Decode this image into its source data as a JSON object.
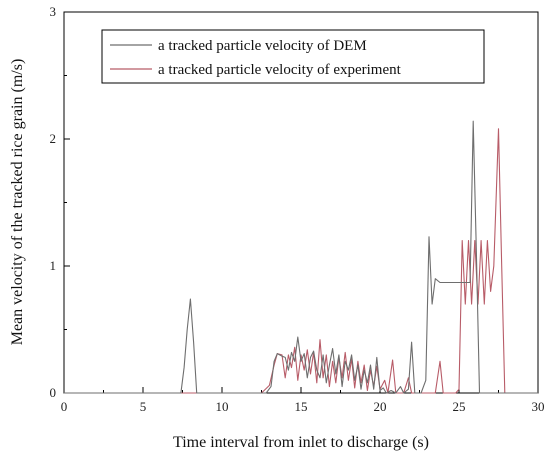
{
  "chart_data": {
    "type": "line",
    "xlabel": "Time interval from inlet to discharge (s)",
    "ylabel": "Mean velocity of the tracked rice grain (m/s)",
    "xlim": [
      0,
      30
    ],
    "ylim": [
      0,
      3
    ],
    "xticks": [
      "0",
      "5",
      "10",
      "15",
      "20",
      "25",
      "30"
    ],
    "yticks": [
      "0",
      "1",
      "2",
      "3"
    ],
    "grid": false,
    "legend_position": "top-center",
    "series": [
      {
        "name": "a tracked particle velocity of DEM",
        "color": "#6e6e6e",
        "points": [
          [
            0,
            0
          ],
          [
            7.4,
            0
          ],
          [
            7.6,
            0.2
          ],
          [
            7.8,
            0.5
          ],
          [
            8.0,
            0.74
          ],
          [
            8.2,
            0.4
          ],
          [
            8.4,
            0
          ],
          [
            12.8,
            0
          ],
          [
            13.1,
            0.05
          ],
          [
            13.3,
            0.25
          ],
          [
            13.5,
            0.31
          ],
          [
            13.8,
            0.29
          ],
          [
            14.0,
            0.28
          ],
          [
            14.2,
            0.18
          ],
          [
            14.4,
            0.32
          ],
          [
            14.6,
            0.25
          ],
          [
            14.8,
            0.44
          ],
          [
            15.0,
            0.25
          ],
          [
            15.2,
            0.31
          ],
          [
            15.4,
            0.12
          ],
          [
            15.6,
            0.28
          ],
          [
            15.8,
            0.33
          ],
          [
            16.0,
            0.18
          ],
          [
            16.2,
            0.12
          ],
          [
            16.4,
            0.3
          ],
          [
            16.6,
            0.08
          ],
          [
            16.8,
            0.22
          ],
          [
            17.0,
            0.35
          ],
          [
            17.2,
            0.15
          ],
          [
            17.4,
            0.3
          ],
          [
            17.6,
            0.05
          ],
          [
            17.8,
            0.25
          ],
          [
            18.0,
            0.18
          ],
          [
            18.2,
            0.3
          ],
          [
            18.4,
            0.1
          ],
          [
            18.6,
            0.22
          ],
          [
            18.8,
            0.03
          ],
          [
            19.0,
            0.18
          ],
          [
            19.2,
            0.08
          ],
          [
            19.4,
            0.22
          ],
          [
            19.6,
            0.03
          ],
          [
            19.8,
            0.28
          ],
          [
            20.0,
            0.02
          ],
          [
            20.2,
            0.04
          ],
          [
            20.4,
            0
          ],
          [
            20.7,
            0.02
          ],
          [
            21.0,
            0
          ],
          [
            21.3,
            0.05
          ],
          [
            21.5,
            0
          ],
          [
            21.8,
            0.03
          ],
          [
            22.0,
            0.4
          ],
          [
            22.2,
            0
          ],
          [
            22.6,
            0
          ],
          [
            22.9,
            0.1
          ],
          [
            23.1,
            1.23
          ],
          [
            23.3,
            0.7
          ],
          [
            23.5,
            0.9
          ],
          [
            23.8,
            0.87
          ],
          [
            25.7,
            0.87
          ],
          [
            25.9,
            2.14
          ],
          [
            26.1,
            1.1
          ],
          [
            26.3,
            0
          ],
          [
            30,
            0
          ]
        ]
      },
      {
        "name": "a tracked particle velocity of experiment",
        "color": "#b85c68",
        "points": [
          [
            0,
            0
          ],
          [
            12.5,
            0
          ],
          [
            13.0,
            0.06
          ],
          [
            13.3,
            0.22
          ],
          [
            13.5,
            0.31
          ],
          [
            13.8,
            0.3
          ],
          [
            14.0,
            0.12
          ],
          [
            14.2,
            0.3
          ],
          [
            14.4,
            0.2
          ],
          [
            14.6,
            0.36
          ],
          [
            14.8,
            0.1
          ],
          [
            15.0,
            0.3
          ],
          [
            15.2,
            0.18
          ],
          [
            15.4,
            0.34
          ],
          [
            15.6,
            0.15
          ],
          [
            15.8,
            0.32
          ],
          [
            16.0,
            0.08
          ],
          [
            16.2,
            0.42
          ],
          [
            16.4,
            0.12
          ],
          [
            16.6,
            0.3
          ],
          [
            16.8,
            0.05
          ],
          [
            17.0,
            0.25
          ],
          [
            17.2,
            0.08
          ],
          [
            17.4,
            0.28
          ],
          [
            17.6,
            0.12
          ],
          [
            17.8,
            0.32
          ],
          [
            18.0,
            0.1
          ],
          [
            18.2,
            0.27
          ],
          [
            18.4,
            0.04
          ],
          [
            18.6,
            0.25
          ],
          [
            18.8,
            0.08
          ],
          [
            19.0,
            0.22
          ],
          [
            19.2,
            0.02
          ],
          [
            19.4,
            0.18
          ],
          [
            19.6,
            0.05
          ],
          [
            19.8,
            0.21
          ],
          [
            20.0,
            0.03
          ],
          [
            20.3,
            0.1
          ],
          [
            20.5,
            0
          ],
          [
            20.8,
            0.26
          ],
          [
            21.0,
            0
          ],
          [
            21.5,
            0
          ],
          [
            21.8,
            0.12
          ],
          [
            22.0,
            0
          ],
          [
            23.5,
            0
          ],
          [
            23.8,
            0.25
          ],
          [
            24.0,
            0
          ],
          [
            24.8,
            0
          ],
          [
            25.0,
            0.03
          ],
          [
            25.2,
            1.2
          ],
          [
            25.4,
            0.7
          ],
          [
            25.6,
            1.2
          ],
          [
            25.8,
            0.7
          ],
          [
            26.0,
            1.2
          ],
          [
            26.2,
            0.7
          ],
          [
            26.4,
            1.2
          ],
          [
            26.6,
            0.7
          ],
          [
            26.8,
            1.2
          ],
          [
            27.0,
            0.8
          ],
          [
            27.2,
            1.0
          ],
          [
            27.5,
            2.08
          ],
          [
            27.7,
            1.0
          ],
          [
            27.9,
            0
          ],
          [
            30,
            0
          ]
        ]
      }
    ]
  }
}
